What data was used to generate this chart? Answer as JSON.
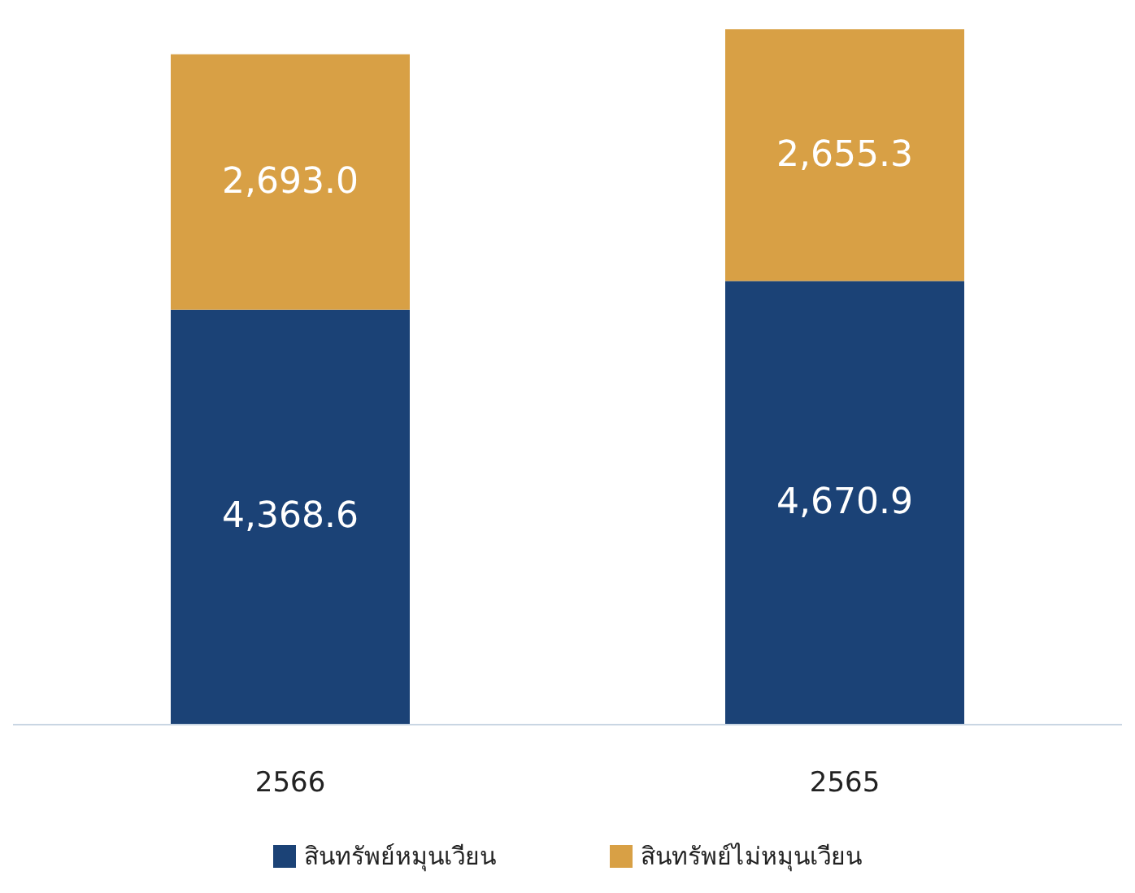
{
  "chart_data": {
    "type": "bar",
    "stacked": true,
    "legend": "bottom",
    "categories": [
      "2566",
      "2565"
    ],
    "series": [
      {
        "name": "สินทรัพย์หมุนเวียน",
        "color": "#1b4276",
        "values": [
          4368.6,
          4670.9
        ],
        "value_labels": [
          "4,368.6",
          "4,670.9"
        ]
      },
      {
        "name": "สินทรัพย์ไม่หมุนเวียน",
        "color": "#d8a045",
        "values": [
          2693.0,
          2655.3
        ],
        "value_labels": [
          "2,693.0",
          "2,655.3"
        ]
      }
    ]
  }
}
